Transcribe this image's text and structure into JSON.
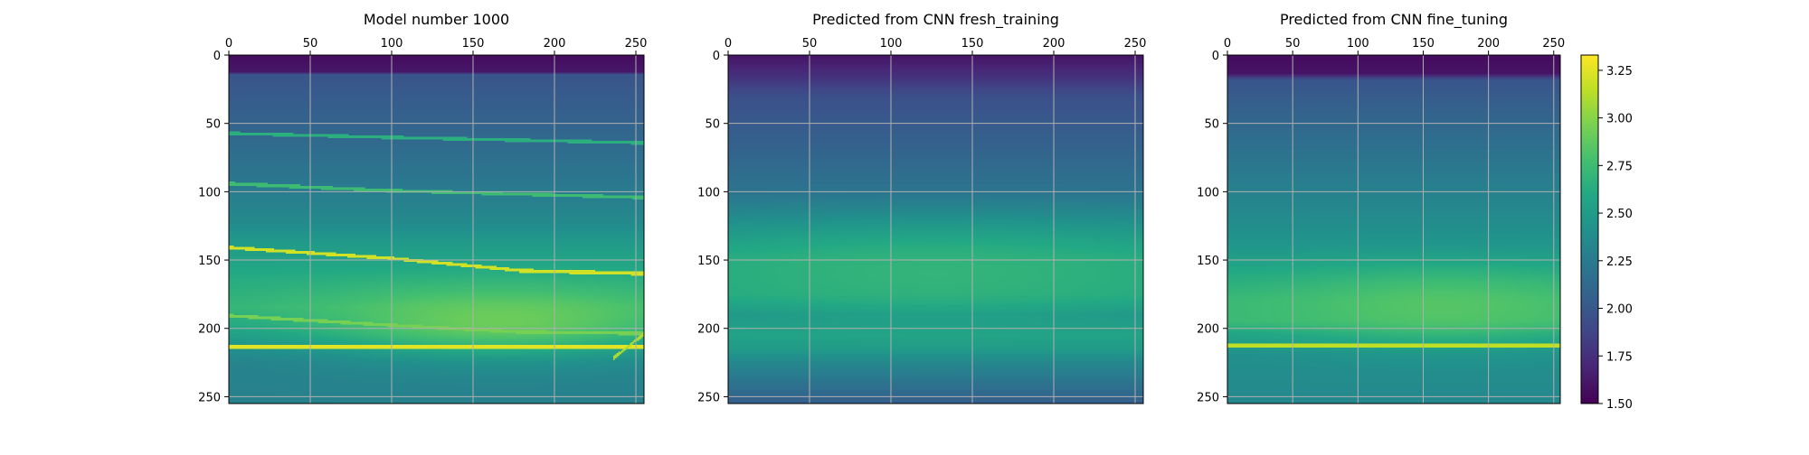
{
  "chart_data": [
    {
      "type": "heatmap",
      "title": "Model number 1000",
      "x_ticks": [
        0,
        50,
        100,
        150,
        200,
        250
      ],
      "y_ticks": [
        0,
        50,
        100,
        150,
        200,
        250
      ],
      "xlim": [
        0,
        255
      ],
      "ylim": [
        255,
        0
      ],
      "x_axis_position": "top",
      "grid": true,
      "background_profile": [
        [
          0,
          1.55
        ],
        [
          12,
          1.62
        ],
        [
          14,
          1.98
        ],
        [
          30,
          2.02
        ],
        [
          55,
          2.1
        ],
        [
          90,
          2.22
        ],
        [
          120,
          2.35
        ],
        [
          140,
          2.5
        ],
        [
          165,
          2.62
        ],
        [
          185,
          2.68
        ],
        [
          200,
          2.55
        ],
        [
          212,
          2.4
        ],
        [
          225,
          2.3
        ],
        [
          255,
          2.3
        ]
      ],
      "bright_layer": {
        "center": [
          0.65,
          195
        ],
        "radius_x": 0.45,
        "depth_height": 25,
        "peak_value": 2.95
      },
      "layer_boundaries": [
        {
          "points": [
            [
              0,
              57
            ],
            [
              100,
              60
            ],
            [
              255,
              64
            ]
          ],
          "value": 2.65
        },
        {
          "points": [
            [
              0,
              94
            ],
            [
              100,
              99
            ],
            [
              255,
              104
            ]
          ],
          "value": 2.75
        },
        {
          "points": [
            [
              0,
              141
            ],
            [
              100,
              149
            ],
            [
              180,
              158
            ],
            [
              255,
              160
            ]
          ],
          "value": 3.2
        },
        {
          "points": [
            [
              0,
              191
            ],
            [
              100,
              198
            ],
            [
              180,
              203
            ],
            [
              255,
              204
            ]
          ],
          "value": 2.95
        },
        {
          "points": [
            [
              0,
              214
            ],
            [
              255,
              214
            ]
          ],
          "value": 3.25
        },
        {
          "points": [
            [
              237,
              222
            ],
            [
              255,
              205
            ]
          ],
          "value": 3.1
        }
      ]
    },
    {
      "type": "heatmap",
      "title": "Predicted from CNN fresh_training",
      "x_ticks": [
        0,
        50,
        100,
        150,
        200,
        250
      ],
      "y_ticks": [
        0,
        50,
        100,
        150,
        200,
        250
      ],
      "xlim": [
        0,
        255
      ],
      "ylim": [
        255,
        0
      ],
      "x_axis_position": "top",
      "grid": true,
      "background_profile": [
        [
          0,
          1.6
        ],
        [
          15,
          1.75
        ],
        [
          30,
          1.95
        ],
        [
          60,
          2.05
        ],
        [
          100,
          2.2
        ],
        [
          130,
          2.45
        ],
        [
          150,
          2.6
        ],
        [
          175,
          2.6
        ],
        [
          190,
          2.45
        ],
        [
          205,
          2.55
        ],
        [
          215,
          2.5
        ],
        [
          225,
          2.35
        ],
        [
          240,
          2.2
        ],
        [
          255,
          2.05
        ]
      ],
      "bright_layer": {
        "center": [
          0.5,
          160
        ],
        "radius_x": 0.55,
        "depth_height": 30,
        "peak_value": 2.7
      },
      "layer_boundaries": []
    },
    {
      "type": "heatmap",
      "title": "Predicted from CNN fine_tuning",
      "x_ticks": [
        0,
        50,
        100,
        150,
        200,
        250
      ],
      "y_ticks": [
        0,
        50,
        100,
        150,
        200,
        250
      ],
      "xlim": [
        0,
        255
      ],
      "ylim": [
        255,
        0
      ],
      "x_axis_position": "top",
      "grid": true,
      "background_profile": [
        [
          0,
          1.55
        ],
        [
          13,
          1.6
        ],
        [
          18,
          1.98
        ],
        [
          35,
          2.05
        ],
        [
          60,
          2.15
        ],
        [
          100,
          2.3
        ],
        [
          140,
          2.45
        ],
        [
          160,
          2.6
        ],
        [
          180,
          2.72
        ],
        [
          195,
          2.72
        ],
        [
          205,
          2.55
        ],
        [
          220,
          2.4
        ],
        [
          255,
          2.35
        ]
      ],
      "bright_layer": {
        "center": [
          0.65,
          185
        ],
        "radius_x": 0.45,
        "depth_height": 25,
        "peak_value": 2.85
      },
      "layer_boundaries": [
        {
          "points": [
            [
              0,
              213
            ],
            [
              255,
              213
            ]
          ],
          "value": 3.15
        }
      ]
    }
  ],
  "colorbar": {
    "colormap": "viridis",
    "vmin": 1.5,
    "vmax": 3.33,
    "ticks": [
      "1.50",
      "1.75",
      "2.00",
      "2.25",
      "2.50",
      "2.75",
      "3.00",
      "3.25"
    ]
  }
}
